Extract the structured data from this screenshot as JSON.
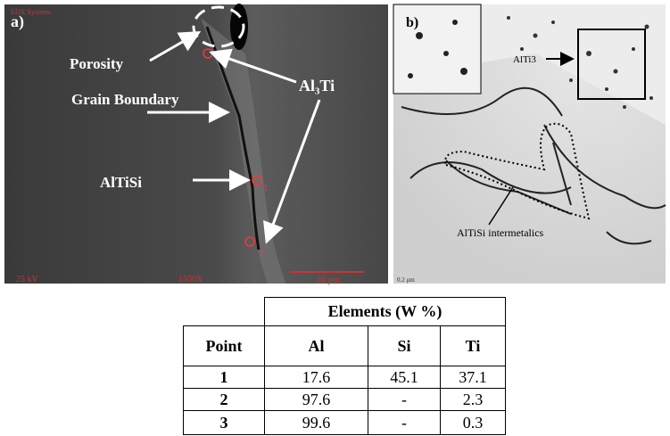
{
  "panel_a": {
    "label": "a)",
    "header": "EDX Systems",
    "annotations": {
      "porosity": "Porosity",
      "grain_boundary": "Grain Boundary",
      "al3ti": "Al₃Ti",
      "altisi": "AlTiSi"
    },
    "points": [
      "1",
      "2"
    ],
    "footer": {
      "voltage": "25 kV",
      "magnification": "1500X",
      "scale": "20 μm"
    }
  },
  "panel_b": {
    "label": "b)",
    "annotations": {
      "alti3": "AlTi3",
      "altisi": "AlTiSi intermetalics"
    },
    "scale": "0.2 μm"
  },
  "table": {
    "group_header": "Elements (W %)",
    "columns": [
      "Point",
      "Al",
      "Si",
      "Ti"
    ],
    "rows": [
      [
        "1",
        "17.6",
        "45.1",
        "37.1"
      ],
      [
        "2",
        "97.6",
        "-",
        "2.3"
      ],
      [
        "3",
        "99.6",
        "-",
        "0.3"
      ]
    ]
  }
}
